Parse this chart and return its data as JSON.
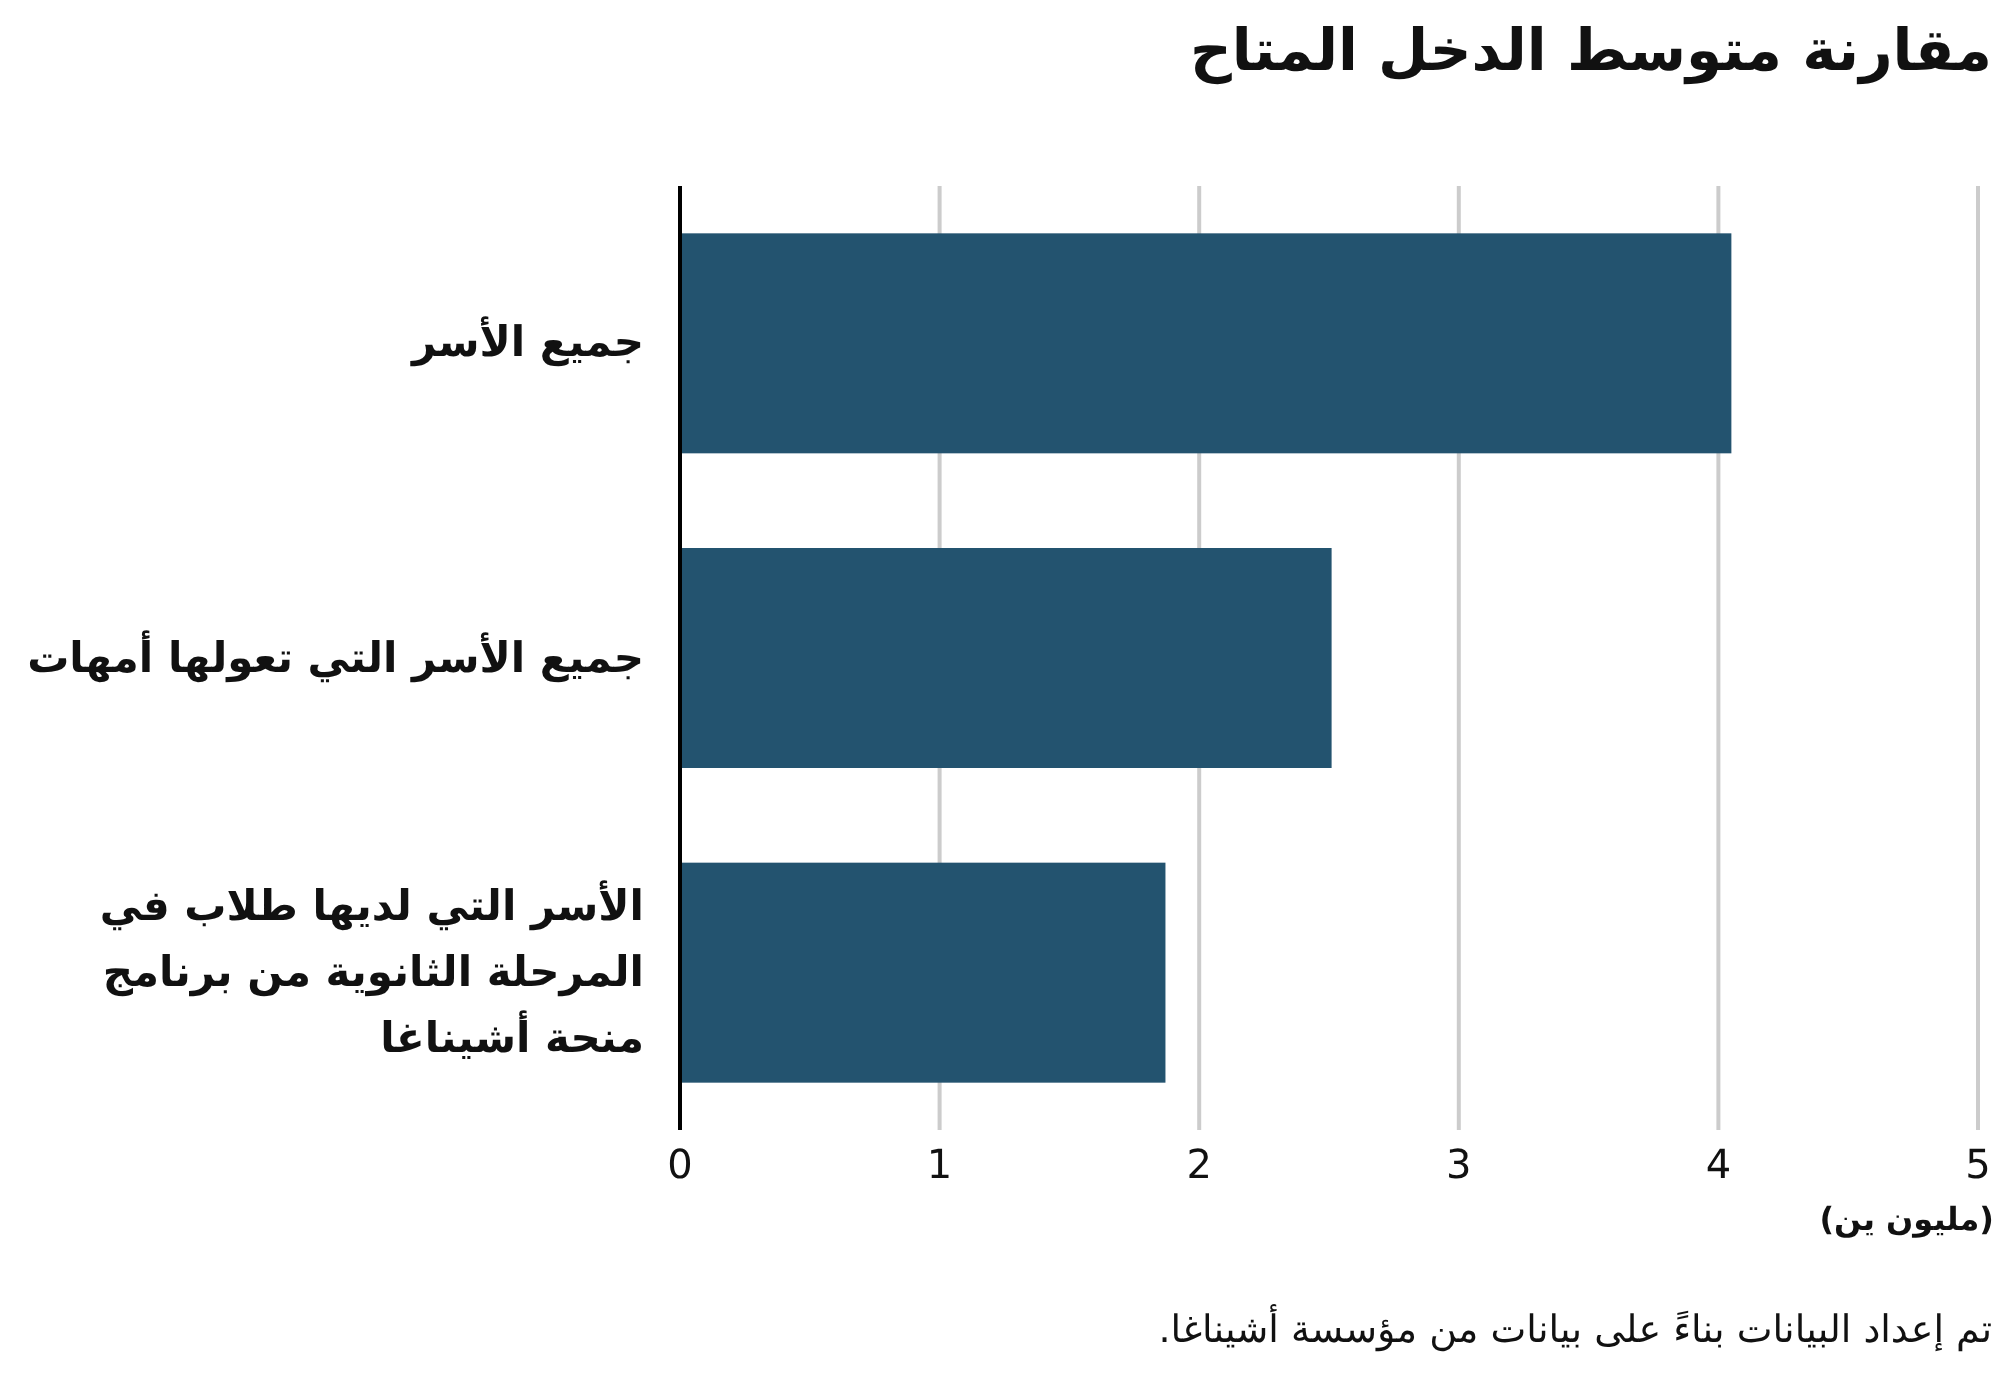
{
  "chart_data": {
    "type": "bar",
    "orientation": "horizontal",
    "title": "مقارنة متوسط الدخل المتاح",
    "categories": [
      "جميع الأسر",
      "جميع الأسر التي تعولها أمهات",
      "الأسر التي لديها طلاب في المرحلة الثانوية من برنامج منحة أشيناغا"
    ],
    "values": [
      4.05,
      2.51,
      1.87
    ],
    "color": "#23536f",
    "xlim": [
      0,
      5
    ],
    "xticks": [
      0,
      1,
      2,
      3,
      4,
      5
    ],
    "xlabel": "(مليون ين)",
    "grid": "x",
    "annotations": [
      "تم إعداد البيانات بناءً على بيانات من مؤسسة أشيناغا."
    ]
  }
}
